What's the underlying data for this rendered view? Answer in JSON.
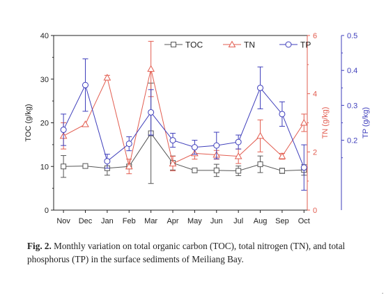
{
  "chart_data": {
    "type": "line",
    "categories": [
      "Nov",
      "Dec",
      "Jan",
      "Feb",
      "Mar",
      "Apr",
      "May",
      "Jun",
      "Jul",
      "Aug",
      "Sep",
      "Oct"
    ],
    "series": [
      {
        "name": "TOC",
        "axis": "left",
        "unit": "g/kg",
        "color": "#555555",
        "marker": "square",
        "values": [
          10.0,
          10.1,
          9.6,
          10.0,
          17.6,
          10.8,
          9.1,
          9.1,
          9.0,
          10.5,
          9.0,
          9.2
        ],
        "err": [
          2.5,
          0.3,
          1.6,
          0.4,
          11.5,
          1.6,
          0.3,
          1.4,
          1.1,
          1.9,
          0.6,
          1.2
        ]
      },
      {
        "name": "TN",
        "axis": "right",
        "unit": "g/kg",
        "color": "#e25c4f",
        "marker": "triangle",
        "values": [
          2.55,
          2.95,
          4.55,
          1.5,
          4.85,
          1.6,
          1.95,
          1.9,
          1.85,
          2.55,
          1.85,
          3.0
        ],
        "err": [
          0.45,
          0.0,
          0.08,
          0.25,
          0.95,
          0.25,
          0.2,
          0.15,
          0.25,
          0.55,
          0.1,
          0.3
        ]
      },
      {
        "name": "TP",
        "axis": "right2",
        "unit": "g/kg",
        "color": "#3d3dbb",
        "marker": "circle",
        "values": [
          0.23,
          0.358,
          0.14,
          0.19,
          0.28,
          0.2,
          0.18,
          0.185,
          0.195,
          0.35,
          0.275,
          0.122
        ],
        "err": [
          0.045,
          0.075,
          0.02,
          0.02,
          0.065,
          0.02,
          0.02,
          0.038,
          0.02,
          0.06,
          0.035,
          0.065
        ]
      }
    ],
    "y_left": {
      "label": "TOC (g/kg)",
      "lim": [
        0,
        40
      ],
      "ticks": [
        "0",
        "10",
        "20",
        "30",
        "40"
      ]
    },
    "y_right": {
      "label": "TN (g/kg)",
      "lim": [
        0,
        6
      ],
      "ticks": [
        "0",
        "2",
        "4",
        "6"
      ]
    },
    "y_right2": {
      "label": "TP (g/kg)",
      "lim": [
        0,
        0.5
      ],
      "ticks": [
        "0.2",
        "0.3",
        "0.4",
        "0.5"
      ]
    },
    "legend": "top-right",
    "grid": false
  },
  "caption": {
    "label": "Fig. 2.",
    "text": "Monthly variation on total organic carbon (TOC), total nitrogen (TN), and total phosphorus (TP) in the surface sediments of Meiliang Bay."
  },
  "stray_mark": "."
}
